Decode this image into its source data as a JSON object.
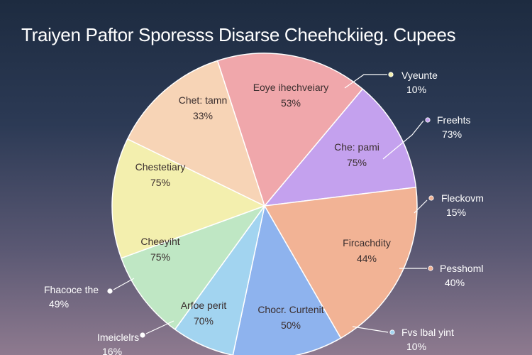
{
  "chart_data": {
    "type": "pie",
    "title": "Traiyen Paftor Sporesss Disarse Cheehckiieg. Cupees",
    "slices": [
      {
        "label": "Eoye ihechveiary",
        "value_text": "53%",
        "color": "#f0a7ab"
      },
      {
        "label": "Che: pami",
        "value_text": "75%",
        "color": "#c4a1ee"
      },
      {
        "label": "Fircachdity",
        "value_text": "44%",
        "color": "#f2b395"
      },
      {
        "label": "Chocr. Curtenit",
        "value_text": "50%",
        "color": "#8eb3ee"
      },
      {
        "label": "Arfoe perit",
        "value_text": "70%",
        "color": "#a2d4f0"
      },
      {
        "label": "Cheeyiht",
        "value_text": "75%",
        "color": "#bfe7c4"
      },
      {
        "label": "Chestetiary",
        "value_text": "75%",
        "color": "#f3efae"
      },
      {
        "label": "Chet: tamn",
        "value_text": "33%",
        "color": "#f7d4b6"
      }
    ],
    "callouts": [
      {
        "label": "Vyeunte",
        "value_text": "10%",
        "color": "#f3efae"
      },
      {
        "label": "Freehts",
        "value_text": "73%",
        "color": "#c4a1ee"
      },
      {
        "label": "Fleckovm",
        "value_text": "15%",
        "color": "#f2b395"
      },
      {
        "label": "Pesshoml",
        "value_text": "40%",
        "color": "#f2b395"
      },
      {
        "label": "Fvs lbal yint",
        "value_text": "10%",
        "color": "#a2d4f0"
      },
      {
        "label": "Fhacoce the",
        "value_text": "49%",
        "color": "#ffffff"
      },
      {
        "label": "Imeiclelrs",
        "value_text": "16%",
        "color": "#ffffff"
      }
    ]
  }
}
